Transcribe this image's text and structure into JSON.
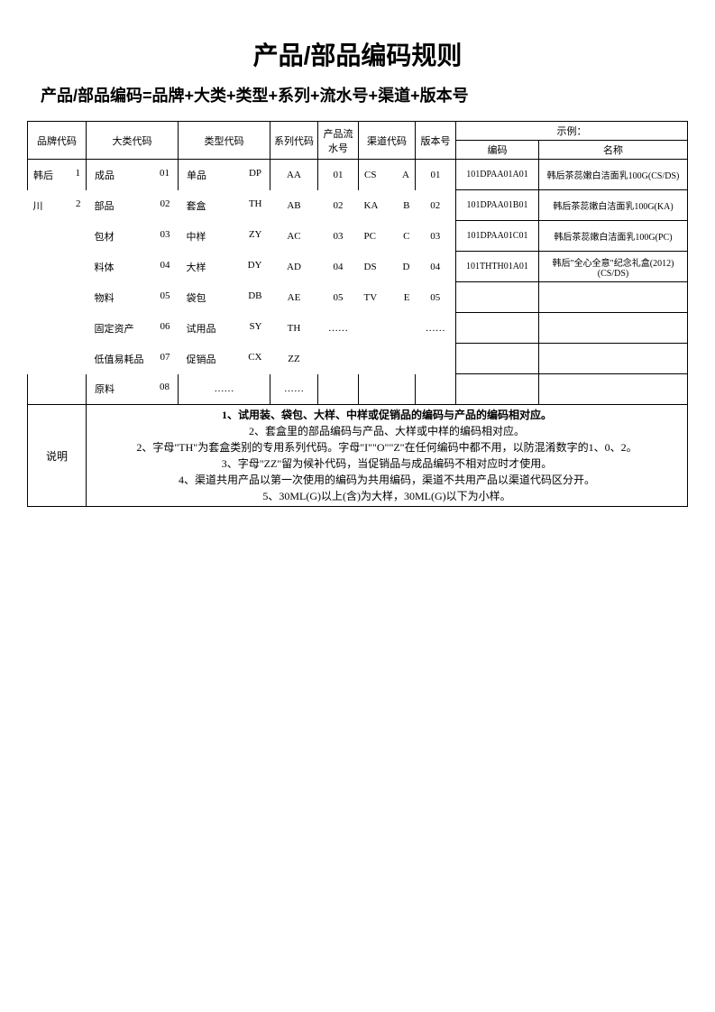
{
  "title": "产品/部品编码规则",
  "subtitle": "产品/部品编码=品牌+大类+类型+系列+流水号+渠道+版本号",
  "headers": {
    "brand": "品牌代码",
    "category": "大类代码",
    "type": "类型代码",
    "series": "系列代码",
    "serial": "产品流水号",
    "channel": "渠道代码",
    "version": "版本号",
    "example": "示例：",
    "example_code": "编码",
    "example_name": "名称"
  },
  "brand_rows": [
    {
      "name": "韩后",
      "code": "1"
    },
    {
      "name": "川",
      "code": "2"
    }
  ],
  "category_rows": [
    {
      "name": "成品",
      "code": "01"
    },
    {
      "name": "部品",
      "code": "02"
    },
    {
      "name": "包材",
      "code": "03"
    },
    {
      "name": "料体",
      "code": "04"
    },
    {
      "name": "物料",
      "code": "05"
    },
    {
      "name": "固定资产",
      "code": "06"
    },
    {
      "name": "低值易耗品",
      "code": "07"
    },
    {
      "name": "原料",
      "code": "08"
    }
  ],
  "type_rows": [
    {
      "name": "单品",
      "code": "DP"
    },
    {
      "name": "套盒",
      "code": "TH"
    },
    {
      "name": "中样",
      "code": "ZY"
    },
    {
      "name": "大样",
      "code": "DY"
    },
    {
      "name": "袋包",
      "code": "DB"
    },
    {
      "name": "试用品",
      "code": "SY"
    },
    {
      "name": "促销品",
      "code": "CX"
    },
    {
      "name": "……",
      "code": ""
    }
  ],
  "series_rows": [
    "AA",
    "AB",
    "AC",
    "AD",
    "AE",
    "TH",
    "ZZ",
    "……"
  ],
  "serial_rows": [
    "01",
    "02",
    "03",
    "04",
    "05",
    "……",
    "",
    ""
  ],
  "channel_rows": [
    {
      "name": "CS",
      "code": "A"
    },
    {
      "name": "KA",
      "code": "B"
    },
    {
      "name": "PC",
      "code": "C"
    },
    {
      "name": "DS",
      "code": "D"
    },
    {
      "name": "TV",
      "code": "E"
    },
    {
      "name": "",
      "code": ""
    },
    {
      "name": "",
      "code": ""
    },
    {
      "name": "",
      "code": ""
    }
  ],
  "version_rows": [
    "01",
    "02",
    "03",
    "04",
    "05",
    "……",
    "",
    ""
  ],
  "examples": [
    {
      "code": "101DPAA01A01",
      "name": "韩后茶蕊嫩白洁面乳100G(CS/DS)"
    },
    {
      "code": "101DPAA01B01",
      "name": "韩后茶蕊嫩白洁面乳100G(KA)"
    },
    {
      "code": "101DPAA01C01",
      "name": "韩后茶蕊嫩白洁面乳100G(PC)"
    },
    {
      "code": "101THTH01A01",
      "name": "韩后\"全心全意\"纪念礼盒(2012)(CS/DS)"
    },
    {
      "code": "",
      "name": ""
    },
    {
      "code": "",
      "name": ""
    },
    {
      "code": "",
      "name": ""
    },
    {
      "code": "",
      "name": ""
    }
  ],
  "notes_label": "说明",
  "notes": {
    "n1": "1、试用装、袋包、大样、中样或促销品的编码与产品的编码相对应。",
    "n2": "2、套盒里的部品编码与产品、大样或中样的编码相对应。",
    "n3": "2、字母\"TH\"为套盒类别的专用系列代码。字母\"I\"\"O\"\"Z\"在任何编码中都不用，以防混淆数字的1、0、2。",
    "n4": "3、字母\"ZZ\"留为候补代码，当促销品与成品编码不相对应时才使用。",
    "n5": "4、渠道共用产品以第一次使用的编码为共用编码，渠道不共用产品以渠道代码区分开。",
    "n6": "5、30ML(G)以上(含)为大样，30ML(G)以下为小样。"
  }
}
